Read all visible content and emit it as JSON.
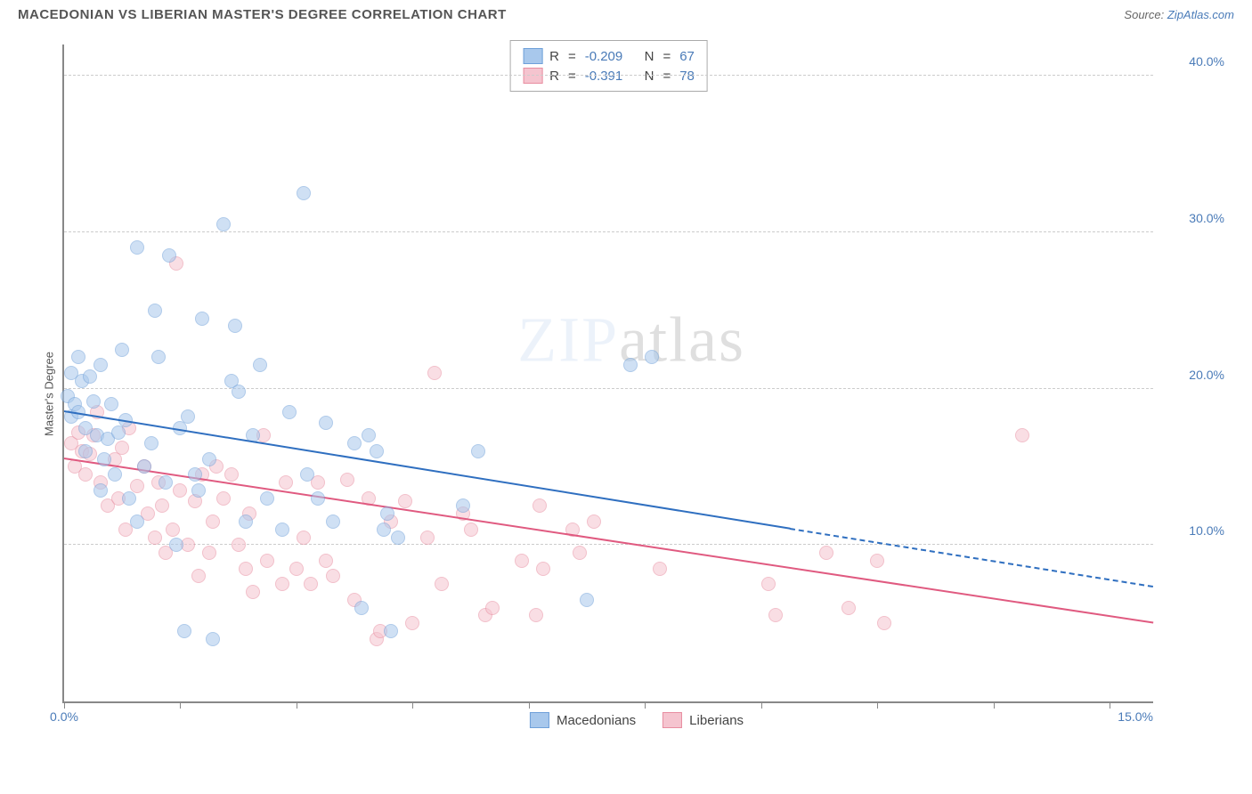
{
  "title": "MACEDONIAN VS LIBERIAN MASTER'S DEGREE CORRELATION CHART",
  "source": {
    "prefix": "Source:",
    "name": "ZipAtlas.com"
  },
  "ylabel": "Master's Degree",
  "watermark": "ZIPatlas",
  "type": "scatter",
  "xlim": [
    0,
    15
  ],
  "ylim": [
    0,
    42
  ],
  "xtick_labels": [
    {
      "x": 0,
      "label": "0.0%"
    },
    {
      "x": 15,
      "label": "15.0%"
    }
  ],
  "xtick_positions": [
    0,
    1.6,
    3.2,
    4.8,
    6.4,
    8.0,
    9.6,
    11.2,
    12.8,
    14.4
  ],
  "ytick_positions": [
    10,
    20,
    30,
    40
  ],
  "ytick_labels": [
    "10.0%",
    "20.0%",
    "30.0%",
    "40.0%"
  ],
  "grid_color": "#cccccc",
  "axis_color": "#888888",
  "background_color": "#ffffff",
  "value_color": "#4a7bb8",
  "marker_radius": 8,
  "marker_opacity": 0.55,
  "series": [
    {
      "label": "Macedonians",
      "R": "-0.209",
      "N": "67",
      "fill": "#a8c8ec",
      "stroke": "#6fa0d9",
      "line_color": "#2f6fc0",
      "trend": {
        "x1": 0,
        "y1": 18.5,
        "x2": 10,
        "y2": 11.0,
        "dash_to_x": 15,
        "dash_to_y": 7.3
      },
      "points": [
        [
          0.05,
          19.5
        ],
        [
          0.1,
          18.2
        ],
        [
          0.1,
          21.0
        ],
        [
          0.15,
          19.0
        ],
        [
          0.2,
          22.0
        ],
        [
          0.2,
          18.5
        ],
        [
          0.25,
          20.5
        ],
        [
          0.3,
          17.5
        ],
        [
          0.3,
          16.0
        ],
        [
          0.35,
          20.8
        ],
        [
          0.4,
          19.2
        ],
        [
          0.45,
          17.0
        ],
        [
          0.5,
          21.5
        ],
        [
          0.55,
          15.5
        ],
        [
          0.6,
          16.8
        ],
        [
          0.65,
          19.0
        ],
        [
          0.7,
          14.5
        ],
        [
          0.75,
          17.2
        ],
        [
          0.8,
          22.5
        ],
        [
          0.85,
          18.0
        ],
        [
          0.9,
          13.0
        ],
        [
          1.0,
          29.0
        ],
        [
          1.1,
          15.0
        ],
        [
          1.2,
          16.5
        ],
        [
          1.25,
          25.0
        ],
        [
          1.3,
          22.0
        ],
        [
          1.4,
          14.0
        ],
        [
          1.45,
          28.5
        ],
        [
          1.55,
          10.0
        ],
        [
          1.6,
          17.5
        ],
        [
          1.7,
          18.2
        ],
        [
          1.8,
          14.5
        ],
        [
          1.85,
          13.5
        ],
        [
          1.9,
          24.5
        ],
        [
          2.0,
          15.5
        ],
        [
          2.2,
          30.5
        ],
        [
          2.3,
          20.5
        ],
        [
          2.35,
          24.0
        ],
        [
          2.4,
          19.8
        ],
        [
          2.5,
          11.5
        ],
        [
          2.6,
          17.0
        ],
        [
          2.7,
          21.5
        ],
        [
          2.8,
          13.0
        ],
        [
          3.0,
          11.0
        ],
        [
          3.1,
          18.5
        ],
        [
          3.3,
          32.5
        ],
        [
          3.35,
          14.5
        ],
        [
          3.5,
          13.0
        ],
        [
          3.6,
          17.8
        ],
        [
          3.7,
          11.5
        ],
        [
          4.0,
          16.5
        ],
        [
          4.1,
          6.0
        ],
        [
          4.2,
          17.0
        ],
        [
          4.3,
          16.0
        ],
        [
          4.4,
          11.0
        ],
        [
          4.45,
          12.0
        ],
        [
          4.5,
          4.5
        ],
        [
          4.6,
          10.5
        ],
        [
          5.5,
          12.5
        ],
        [
          5.7,
          16.0
        ],
        [
          7.2,
          6.5
        ],
        [
          7.8,
          21.5
        ],
        [
          8.1,
          22.0
        ],
        [
          1.65,
          4.5
        ],
        [
          2.05,
          4.0
        ],
        [
          1.0,
          11.5
        ],
        [
          0.5,
          13.5
        ]
      ]
    },
    {
      "label": "Liberians",
      "R": "-0.391",
      "N": "78",
      "fill": "#f5c4cf",
      "stroke": "#e88da0",
      "line_color": "#e05a80",
      "trend": {
        "x1": 0,
        "y1": 15.5,
        "x2": 15,
        "y2": 5.0
      },
      "points": [
        [
          0.1,
          16.5
        ],
        [
          0.15,
          15.0
        ],
        [
          0.2,
          17.2
        ],
        [
          0.25,
          16.0
        ],
        [
          0.3,
          14.5
        ],
        [
          0.35,
          15.8
        ],
        [
          0.4,
          17.0
        ],
        [
          0.45,
          18.5
        ],
        [
          0.5,
          14.0
        ],
        [
          0.6,
          12.5
        ],
        [
          0.7,
          15.5
        ],
        [
          0.75,
          13.0
        ],
        [
          0.8,
          16.2
        ],
        [
          0.85,
          11.0
        ],
        [
          0.9,
          17.5
        ],
        [
          1.0,
          13.8
        ],
        [
          1.1,
          15.0
        ],
        [
          1.15,
          12.0
        ],
        [
          1.25,
          10.5
        ],
        [
          1.3,
          14.0
        ],
        [
          1.35,
          12.5
        ],
        [
          1.4,
          9.5
        ],
        [
          1.5,
          11.0
        ],
        [
          1.55,
          28.0
        ],
        [
          1.6,
          13.5
        ],
        [
          1.7,
          10.0
        ],
        [
          1.8,
          12.8
        ],
        [
          1.85,
          8.0
        ],
        [
          1.9,
          14.5
        ],
        [
          2.0,
          9.5
        ],
        [
          2.05,
          11.5
        ],
        [
          2.1,
          15.0
        ],
        [
          2.2,
          13.0
        ],
        [
          2.3,
          14.5
        ],
        [
          2.4,
          10.0
        ],
        [
          2.5,
          8.5
        ],
        [
          2.55,
          12.0
        ],
        [
          2.6,
          7.0
        ],
        [
          2.75,
          17.0
        ],
        [
          2.8,
          9.0
        ],
        [
          3.0,
          7.5
        ],
        [
          3.05,
          14.0
        ],
        [
          3.2,
          8.5
        ],
        [
          3.3,
          10.5
        ],
        [
          3.4,
          7.5
        ],
        [
          3.5,
          14.0
        ],
        [
          3.6,
          9.0
        ],
        [
          3.7,
          8.0
        ],
        [
          3.9,
          14.2
        ],
        [
          4.0,
          6.5
        ],
        [
          4.2,
          13.0
        ],
        [
          4.3,
          4.0
        ],
        [
          4.5,
          11.5
        ],
        [
          4.7,
          12.8
        ],
        [
          4.8,
          5.0
        ],
        [
          5.0,
          10.5
        ],
        [
          5.1,
          21.0
        ],
        [
          5.2,
          7.5
        ],
        [
          5.5,
          12.0
        ],
        [
          5.6,
          11.0
        ],
        [
          5.8,
          5.5
        ],
        [
          5.9,
          6.0
        ],
        [
          6.3,
          9.0
        ],
        [
          6.5,
          5.5
        ],
        [
          6.55,
          12.5
        ],
        [
          6.6,
          8.5
        ],
        [
          7.0,
          11.0
        ],
        [
          7.3,
          11.5
        ],
        [
          7.1,
          9.5
        ],
        [
          8.2,
          8.5
        ],
        [
          9.7,
          7.5
        ],
        [
          9.8,
          5.5
        ],
        [
          10.5,
          9.5
        ],
        [
          10.8,
          6.0
        ],
        [
          11.2,
          9.0
        ],
        [
          11.3,
          5.0
        ],
        [
          13.2,
          17.0
        ],
        [
          4.35,
          4.5
        ]
      ]
    }
  ]
}
